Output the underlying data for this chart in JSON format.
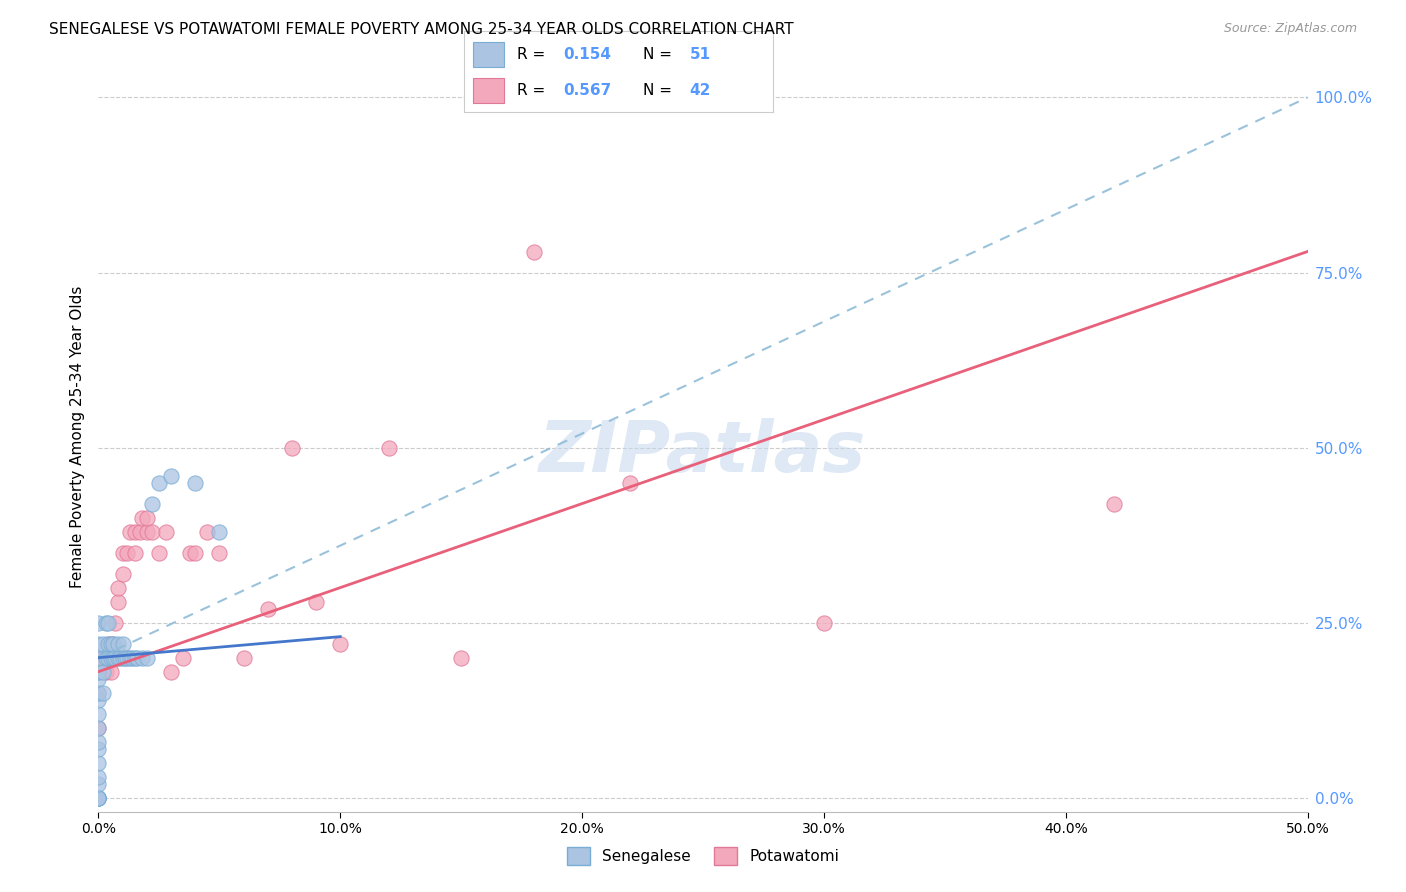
{
  "title": "SENEGALESE VS POTAWATOMI FEMALE POVERTY AMONG 25-34 YEAR OLDS CORRELATION CHART",
  "source": "Source: ZipAtlas.com",
  "ylabel": "Female Poverty Among 25-34 Year Olds",
  "xlim": [
    0.0,
    0.5
  ],
  "ylim": [
    -0.02,
    1.05
  ],
  "xtick_labels": [
    "0.0%",
    "10.0%",
    "20.0%",
    "30.0%",
    "40.0%",
    "50.0%"
  ],
  "xtick_vals": [
    0.0,
    0.1,
    0.2,
    0.3,
    0.4,
    0.5
  ],
  "ytick_labels": [
    "0.0%",
    "25.0%",
    "50.0%",
    "75.0%",
    "100.0%"
  ],
  "ytick_vals": [
    0.0,
    0.25,
    0.5,
    0.75,
    1.0
  ],
  "senegalese_color": "#aac4e2",
  "senegalese_edge": "#7aadd4",
  "potawatomi_color": "#f4a8bc",
  "potawatomi_edge": "#e07898",
  "trend_dashed_color": "#90bcd8",
  "trend_solid_color": "#e8607a",
  "trend_senegalese_flat_color": "#4477cc",
  "watermark": "ZIPatlas",
  "background_color": "#ffffff",
  "grid_color": "#cccccc",
  "right_tick_color": "#5599ff",
  "legend_box_color": "#eeeeee",
  "senegalese_x": [
    0.0,
    0.0,
    0.0,
    0.0,
    0.0,
    0.0,
    0.0,
    0.0,
    0.0,
    0.0,
    0.0,
    0.0,
    0.0,
    0.0,
    0.0,
    0.0,
    0.0,
    0.0,
    0.0,
    0.0,
    0.002,
    0.002,
    0.002,
    0.003,
    0.003,
    0.004,
    0.004,
    0.004,
    0.005,
    0.005,
    0.006,
    0.006,
    0.007,
    0.008,
    0.008,
    0.009,
    0.01,
    0.01,
    0.011,
    0.012,
    0.013,
    0.014,
    0.015,
    0.016,
    0.018,
    0.02,
    0.022,
    0.025,
    0.03,
    0.04,
    0.05
  ],
  "senegalese_y": [
    0.0,
    0.0,
    0.0,
    0.0,
    0.0,
    0.0,
    0.02,
    0.03,
    0.05,
    0.07,
    0.08,
    0.1,
    0.12,
    0.14,
    0.15,
    0.17,
    0.18,
    0.2,
    0.22,
    0.25,
    0.15,
    0.18,
    0.22,
    0.2,
    0.25,
    0.2,
    0.22,
    0.25,
    0.2,
    0.22,
    0.2,
    0.22,
    0.2,
    0.2,
    0.22,
    0.2,
    0.2,
    0.22,
    0.2,
    0.2,
    0.2,
    0.2,
    0.2,
    0.2,
    0.2,
    0.2,
    0.42,
    0.45,
    0.46,
    0.45,
    0.38
  ],
  "potawatomi_x": [
    0.0,
    0.0,
    0.0,
    0.002,
    0.003,
    0.004,
    0.005,
    0.005,
    0.006,
    0.007,
    0.008,
    0.008,
    0.01,
    0.01,
    0.012,
    0.013,
    0.015,
    0.015,
    0.017,
    0.018,
    0.02,
    0.02,
    0.022,
    0.025,
    0.028,
    0.03,
    0.035,
    0.038,
    0.04,
    0.045,
    0.05,
    0.06,
    0.07,
    0.08,
    0.09,
    0.1,
    0.12,
    0.15,
    0.18,
    0.22,
    0.3,
    0.42
  ],
  "potawatomi_y": [
    0.1,
    0.15,
    0.18,
    0.2,
    0.18,
    0.22,
    0.18,
    0.2,
    0.22,
    0.25,
    0.28,
    0.3,
    0.32,
    0.35,
    0.35,
    0.38,
    0.35,
    0.38,
    0.38,
    0.4,
    0.38,
    0.4,
    0.38,
    0.35,
    0.38,
    0.18,
    0.2,
    0.35,
    0.35,
    0.38,
    0.35,
    0.2,
    0.27,
    0.5,
    0.28,
    0.22,
    0.5,
    0.2,
    0.78,
    0.45,
    0.25,
    0.42
  ],
  "senegalese_R": 0.154,
  "senegalese_N": 51,
  "potawatomi_R": 0.567,
  "potawatomi_N": 42
}
